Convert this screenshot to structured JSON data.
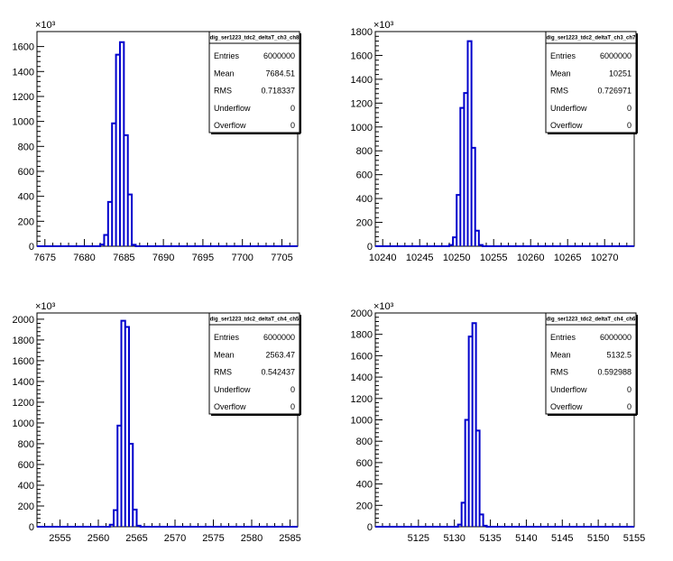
{
  "chart_data": [
    {
      "type": "histogram",
      "title": "dig_ser1223_tdc2_deltaT_ch3_ch8",
      "xlim": [
        7674,
        7707
      ],
      "ylim": [
        0,
        1720
      ],
      "y_exponent": "×10³",
      "xticks": [
        7675,
        7680,
        7685,
        7690,
        7695,
        7700,
        7705
      ],
      "yticks": [
        0,
        200,
        400,
        600,
        800,
        1000,
        1200,
        1400,
        1600
      ],
      "bin_width": 0.5,
      "bins": [
        [
          7682.0,
          14
        ],
        [
          7682.5,
          90
        ],
        [
          7683.0,
          355
        ],
        [
          7683.5,
          985
        ],
        [
          7684.0,
          1535
        ],
        [
          7684.5,
          1635
        ],
        [
          7685.0,
          890
        ],
        [
          7685.5,
          415
        ],
        [
          7686.0,
          12
        ]
      ],
      "stats": [
        {
          "label": "Entries",
          "value": "6000000"
        },
        {
          "label": "Mean",
          "value": "7684.51"
        },
        {
          "label": "RMS",
          "value": "0.718337"
        },
        {
          "label": "Underflow",
          "value": "0"
        },
        {
          "label": "Overflow",
          "value": "0"
        }
      ]
    },
    {
      "type": "histogram",
      "title": "dig_ser1223_tdc2_deltaT_ch3_ch7",
      "xlim": [
        10239,
        10274
      ],
      "ylim": [
        0,
        1800
      ],
      "y_exponent": "×10³",
      "xticks": [
        10240,
        10245,
        10250,
        10255,
        10260,
        10265,
        10270
      ],
      "yticks": [
        0,
        200,
        400,
        600,
        800,
        1000,
        1200,
        1400,
        1600,
        1800
      ],
      "bin_width": 0.5,
      "bins": [
        [
          10249.0,
          10
        ],
        [
          10249.5,
          75
        ],
        [
          10250.0,
          430
        ],
        [
          10250.5,
          1160
        ],
        [
          10251.0,
          1285
        ],
        [
          10251.5,
          1720
        ],
        [
          10252.0,
          825
        ],
        [
          10252.5,
          130
        ],
        [
          10253.0,
          10
        ]
      ],
      "stats": [
        {
          "label": "Entries",
          "value": "6000000"
        },
        {
          "label": "Mean",
          "value": "10251"
        },
        {
          "label": "RMS",
          "value": "0.726971"
        },
        {
          "label": "Underflow",
          "value": "0"
        },
        {
          "label": "Overflow",
          "value": "0"
        }
      ]
    },
    {
      "type": "histogram",
      "title": "dig_ser1223_tdc2_deltaT_ch4_ch5",
      "xlim": [
        2552,
        2586
      ],
      "ylim": [
        0,
        2060
      ],
      "y_exponent": "×10³",
      "xticks": [
        2555,
        2560,
        2565,
        2570,
        2575,
        2580,
        2585
      ],
      "yticks": [
        0,
        200,
        400,
        600,
        800,
        1000,
        1200,
        1400,
        1600,
        1800,
        2000
      ],
      "bin_width": 0.5,
      "bins": [
        [
          2561.5,
          20
        ],
        [
          2562.0,
          160
        ],
        [
          2562.5,
          975
        ],
        [
          2563.0,
          1985
        ],
        [
          2563.5,
          1925
        ],
        [
          2564.0,
          800
        ],
        [
          2564.5,
          165
        ],
        [
          2565.0,
          10
        ]
      ],
      "stats": [
        {
          "label": "Entries",
          "value": "6000000"
        },
        {
          "label": "Mean",
          "value": "2563.47"
        },
        {
          "label": "RMS",
          "value": "0.542437"
        },
        {
          "label": "Underflow",
          "value": "0"
        },
        {
          "label": "Overflow",
          "value": "0"
        }
      ]
    },
    {
      "type": "histogram",
      "title": "dig_ser1223_tdc2_deltaT_ch4_ch6",
      "xlim": [
        5119,
        5155
      ],
      "ylim": [
        0,
        2000
      ],
      "y_exponent": "×10³",
      "xticks": [
        5125,
        5130,
        5135,
        5140,
        5145,
        5150,
        5155
      ],
      "yticks": [
        0,
        200,
        400,
        600,
        800,
        1000,
        1200,
        1400,
        1600,
        1800,
        2000
      ],
      "bin_width": 0.5,
      "bins": [
        [
          5130.5,
          20
        ],
        [
          5131.0,
          225
        ],
        [
          5131.5,
          1000
        ],
        [
          5132.0,
          1780
        ],
        [
          5132.5,
          1905
        ],
        [
          5133.0,
          900
        ],
        [
          5133.5,
          115
        ],
        [
          5134.0,
          10
        ]
      ],
      "stats": [
        {
          "label": "Entries",
          "value": "6000000"
        },
        {
          "label": "Mean",
          "value": "5132.5"
        },
        {
          "label": "RMS",
          "value": "0.592988"
        },
        {
          "label": "Underflow",
          "value": "0"
        },
        {
          "label": "Overflow",
          "value": "0"
        }
      ]
    }
  ]
}
